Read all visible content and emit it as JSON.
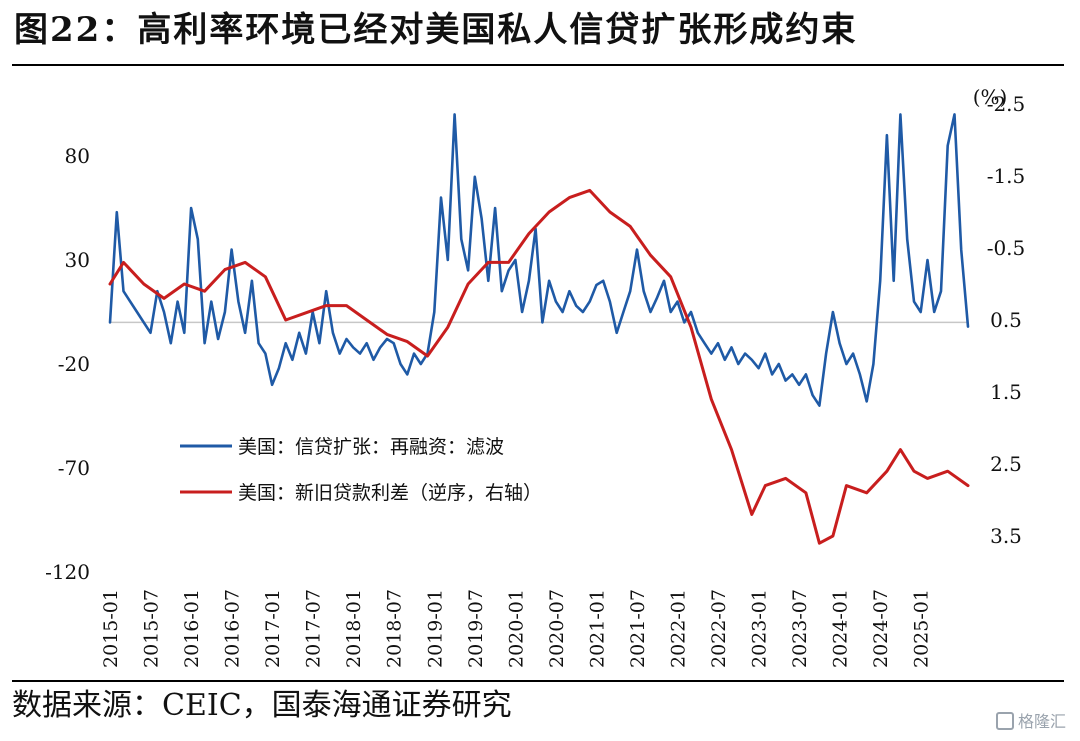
{
  "header": {
    "title": "图22：高利率环境已经对美国私人信贷扩张形成约束"
  },
  "footer": {
    "source": "数据来源：CEIC，国泰海通证券研究",
    "watermark": "格隆汇"
  },
  "chart_data": {
    "type": "line",
    "left_axis": {
      "ticks": [
        80,
        30,
        -20,
        -70,
        -120
      ],
      "range": [
        -120,
        105
      ]
    },
    "right_axis": {
      "unit_label": "(%)",
      "ticks": [
        "-2.5",
        "-1.5",
        "-0.5",
        "0.5",
        "1.5",
        "2.5",
        "3.5"
      ],
      "range_values": [
        -2.5,
        3.5
      ],
      "inverted": true
    },
    "x_ticks": [
      "2015-01",
      "2015-07",
      "2016-01",
      "2016-07",
      "2017-01",
      "2017-07",
      "2018-01",
      "2018-07",
      "2019-01",
      "2019-07",
      "2020-01",
      "2020-07",
      "2021-01",
      "2021-07",
      "2022-01",
      "2022-07",
      "2023-01",
      "2023-07",
      "2024-01",
      "2024-07",
      "2025-01"
    ],
    "legend": {
      "placement": "center-left"
    },
    "series": [
      {
        "name": "美国：信贷扩张：再融资：滤波",
        "color": "#1f5aa6",
        "axis": "left",
        "points": [
          [
            "2015-01",
            0
          ],
          [
            "2015-02",
            53
          ],
          [
            "2015-03",
            15
          ],
          [
            "2015-05",
            5
          ],
          [
            "2015-07",
            -5
          ],
          [
            "2015-08",
            15
          ],
          [
            "2015-09",
            5
          ],
          [
            "2015-10",
            -10
          ],
          [
            "2015-11",
            10
          ],
          [
            "2015-12",
            -5
          ],
          [
            "2016-01",
            55
          ],
          [
            "2016-02",
            40
          ],
          [
            "2016-03",
            -10
          ],
          [
            "2016-04",
            10
          ],
          [
            "2016-05",
            -8
          ],
          [
            "2016-06",
            5
          ],
          [
            "2016-07",
            35
          ],
          [
            "2016-08",
            10
          ],
          [
            "2016-09",
            -5
          ],
          [
            "2016-10",
            20
          ],
          [
            "2016-11",
            -10
          ],
          [
            "2016-12",
            -15
          ],
          [
            "2017-01",
            -30
          ],
          [
            "2017-02",
            -22
          ],
          [
            "2017-03",
            -10
          ],
          [
            "2017-04",
            -18
          ],
          [
            "2017-05",
            -5
          ],
          [
            "2017-06",
            -15
          ],
          [
            "2017-07",
            5
          ],
          [
            "2017-08",
            -10
          ],
          [
            "2017-09",
            15
          ],
          [
            "2017-10",
            -5
          ],
          [
            "2017-11",
            -15
          ],
          [
            "2017-12",
            -8
          ],
          [
            "2018-01",
            -12
          ],
          [
            "2018-02",
            -15
          ],
          [
            "2018-03",
            -10
          ],
          [
            "2018-04",
            -18
          ],
          [
            "2018-05",
            -12
          ],
          [
            "2018-06",
            -8
          ],
          [
            "2018-07",
            -10
          ],
          [
            "2018-08",
            -20
          ],
          [
            "2018-09",
            -25
          ],
          [
            "2018-10",
            -15
          ],
          [
            "2018-11",
            -20
          ],
          [
            "2018-12",
            -15
          ],
          [
            "2019-01",
            5
          ],
          [
            "2019-02",
            60
          ],
          [
            "2019-03",
            30
          ],
          [
            "2019-04",
            100
          ],
          [
            "2019-05",
            40
          ],
          [
            "2019-06",
            25
          ],
          [
            "2019-07",
            70
          ],
          [
            "2019-08",
            50
          ],
          [
            "2019-09",
            20
          ],
          [
            "2019-10",
            55
          ],
          [
            "2019-11",
            15
          ],
          [
            "2019-12",
            25
          ],
          [
            "2020-01",
            30
          ],
          [
            "2020-02",
            5
          ],
          [
            "2020-03",
            20
          ],
          [
            "2020-04",
            45
          ],
          [
            "2020-05",
            0
          ],
          [
            "2020-06",
            20
          ],
          [
            "2020-07",
            10
          ],
          [
            "2020-08",
            5
          ],
          [
            "2020-09",
            15
          ],
          [
            "2020-10",
            8
          ],
          [
            "2020-11",
            5
          ],
          [
            "2020-12",
            10
          ],
          [
            "2021-01",
            18
          ],
          [
            "2021-02",
            20
          ],
          [
            "2021-03",
            10
          ],
          [
            "2021-04",
            -5
          ],
          [
            "2021-05",
            5
          ],
          [
            "2021-06",
            15
          ],
          [
            "2021-07",
            35
          ],
          [
            "2021-08",
            15
          ],
          [
            "2021-09",
            5
          ],
          [
            "2021-10",
            12
          ],
          [
            "2021-11",
            20
          ],
          [
            "2021-12",
            5
          ],
          [
            "2022-01",
            10
          ],
          [
            "2022-02",
            0
          ],
          [
            "2022-03",
            5
          ],
          [
            "2022-04",
            -5
          ],
          [
            "2022-05",
            -10
          ],
          [
            "2022-06",
            -15
          ],
          [
            "2022-07",
            -10
          ],
          [
            "2022-08",
            -18
          ],
          [
            "2022-09",
            -12
          ],
          [
            "2022-10",
            -20
          ],
          [
            "2022-11",
            -15
          ],
          [
            "2022-12",
            -18
          ],
          [
            "2023-01",
            -22
          ],
          [
            "2023-02",
            -15
          ],
          [
            "2023-03",
            -25
          ],
          [
            "2023-04",
            -20
          ],
          [
            "2023-05",
            -28
          ],
          [
            "2023-06",
            -25
          ],
          [
            "2023-07",
            -30
          ],
          [
            "2023-08",
            -25
          ],
          [
            "2023-09",
            -35
          ],
          [
            "2023-10",
            -40
          ],
          [
            "2023-11",
            -15
          ],
          [
            "2023-12",
            5
          ],
          [
            "2024-01",
            -10
          ],
          [
            "2024-02",
            -20
          ],
          [
            "2024-03",
            -15
          ],
          [
            "2024-04",
            -25
          ],
          [
            "2024-05",
            -38
          ],
          [
            "2024-06",
            -20
          ],
          [
            "2024-07",
            20
          ],
          [
            "2024-08",
            90
          ],
          [
            "2024-09",
            20
          ],
          [
            "2024-10",
            100
          ],
          [
            "2024-11",
            40
          ],
          [
            "2024-12",
            10
          ],
          [
            "2025-01",
            5
          ],
          [
            "2025-02",
            30
          ],
          [
            "2025-03",
            5
          ],
          [
            "2025-04",
            15
          ],
          [
            "2025-05",
            85
          ],
          [
            "2025-06",
            100
          ],
          [
            "2025-07",
            35
          ],
          [
            "2025-08",
            -2
          ]
        ]
      },
      {
        "name": "美国：新旧贷款利差（逆序，右轴）",
        "color": "#c81e1e",
        "axis": "right",
        "points": [
          [
            "2015-01",
            0.0
          ],
          [
            "2015-03",
            -0.3
          ],
          [
            "2015-06",
            0.0
          ],
          [
            "2015-09",
            0.2
          ],
          [
            "2015-12",
            0.0
          ],
          [
            "2016-03",
            0.1
          ],
          [
            "2016-06",
            -0.2
          ],
          [
            "2016-09",
            -0.3
          ],
          [
            "2016-12",
            -0.1
          ],
          [
            "2017-03",
            0.5
          ],
          [
            "2017-06",
            0.4
          ],
          [
            "2017-09",
            0.3
          ],
          [
            "2017-12",
            0.3
          ],
          [
            "2018-03",
            0.5
          ],
          [
            "2018-06",
            0.7
          ],
          [
            "2018-09",
            0.8
          ],
          [
            "2018-12",
            1.0
          ],
          [
            "2019-03",
            0.6
          ],
          [
            "2019-06",
            0.0
          ],
          [
            "2019-09",
            -0.3
          ],
          [
            "2019-12",
            -0.3
          ],
          [
            "2020-03",
            -0.7
          ],
          [
            "2020-06",
            -1.0
          ],
          [
            "2020-09",
            -1.2
          ],
          [
            "2020-12",
            -1.3
          ],
          [
            "2021-03",
            -1.0
          ],
          [
            "2021-06",
            -0.8
          ],
          [
            "2021-09",
            -0.4
          ],
          [
            "2021-12",
            -0.1
          ],
          [
            "2022-03",
            0.6
          ],
          [
            "2022-06",
            1.6
          ],
          [
            "2022-09",
            2.3
          ],
          [
            "2022-12",
            3.2
          ],
          [
            "2023-02",
            2.8
          ],
          [
            "2023-05",
            2.7
          ],
          [
            "2023-08",
            2.9
          ],
          [
            "2023-10",
            3.6
          ],
          [
            "2023-12",
            3.5
          ],
          [
            "2024-02",
            2.8
          ],
          [
            "2024-05",
            2.9
          ],
          [
            "2024-08",
            2.6
          ],
          [
            "2024-10",
            2.3
          ],
          [
            "2024-12",
            2.6
          ],
          [
            "2025-02",
            2.7
          ],
          [
            "2025-05",
            2.6
          ],
          [
            "2025-08",
            2.8
          ]
        ]
      }
    ]
  }
}
